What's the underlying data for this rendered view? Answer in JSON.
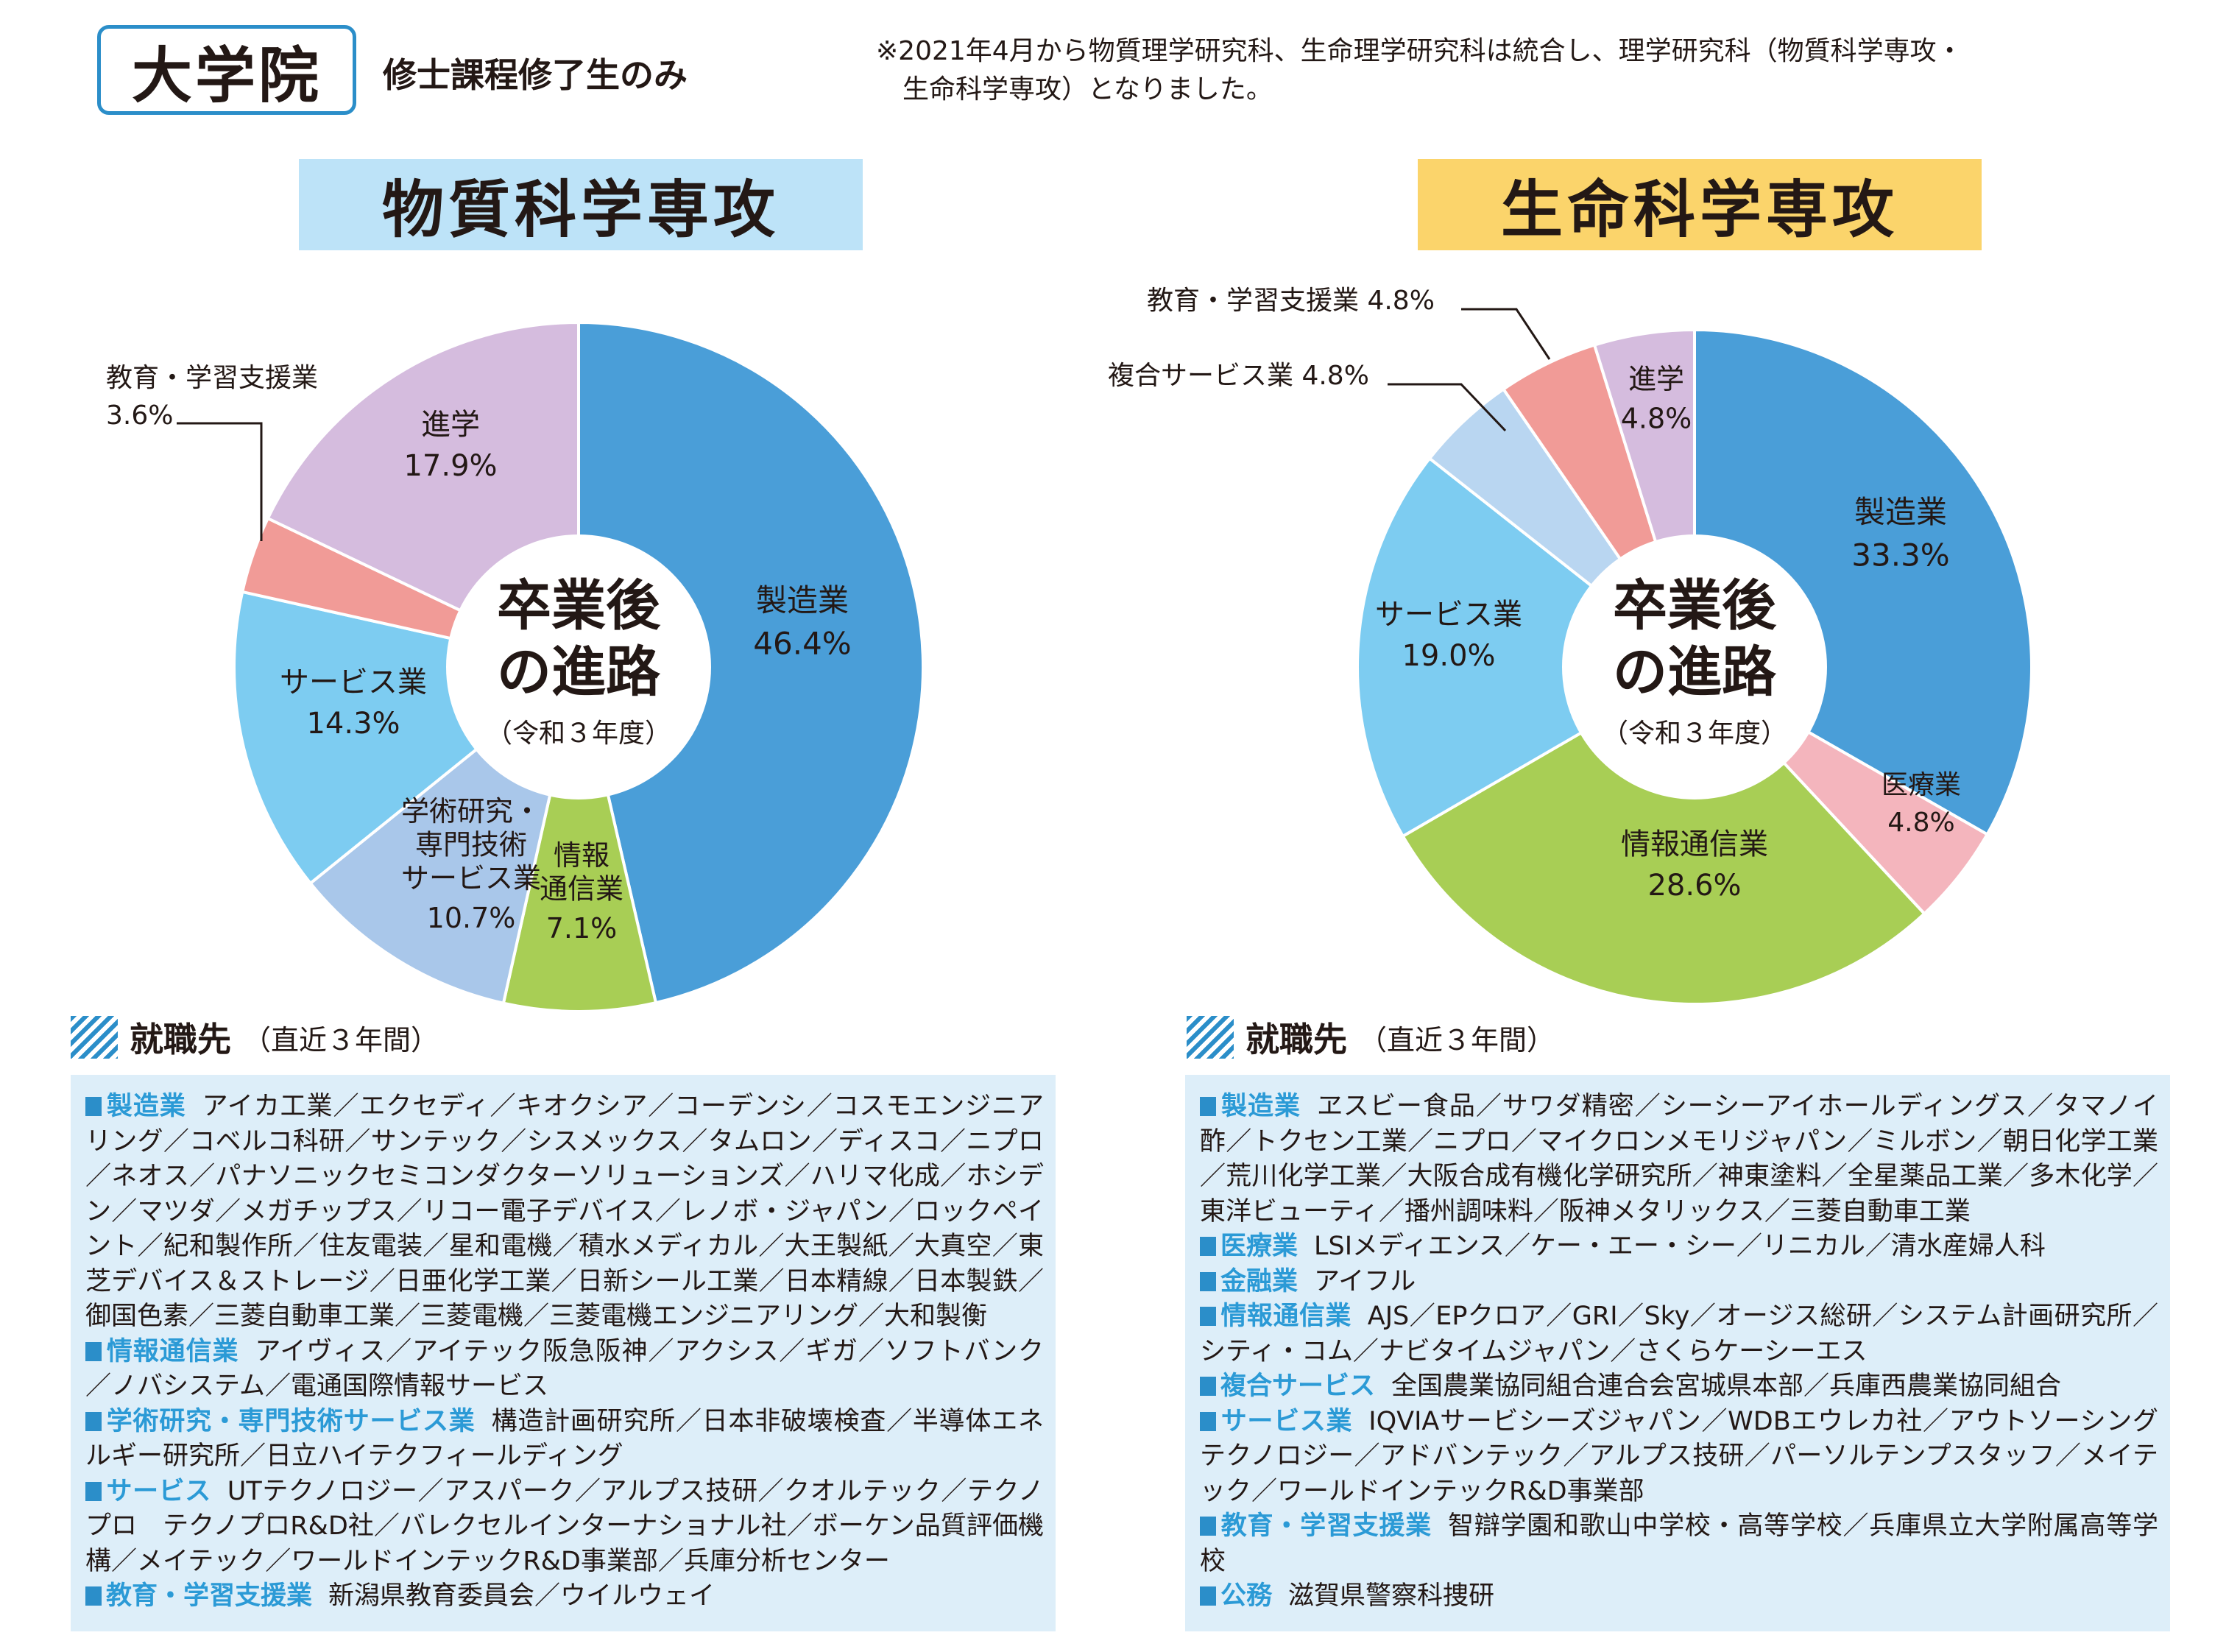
{
  "header": {
    "title": "大学院",
    "subtitle": "修士課程修了生のみ",
    "note": "※2021年4月から物質理学研究科、生命理学研究科は統合し、理学研究科（物質科学専攻・\n　生命科学専攻）となりました。"
  },
  "chart_data": [
    {
      "type": "pie",
      "title": "物質科学専攻",
      "center_label": [
        "卒業後",
        "の進路",
        "（令和３年度）"
      ],
      "slices": [
        {
          "label": "製造業",
          "value": 46.4,
          "color": "#4a9ed8"
        },
        {
          "label": "情報通信業",
          "value": 7.1,
          "color": "#a8ce55"
        },
        {
          "label": "学術研究・専門技術サービス業",
          "value": 10.7,
          "color": "#a9c7ea"
        },
        {
          "label": "サービス業",
          "value": 14.3,
          "color": "#7dccf1"
        },
        {
          "label": "教育・学習支援業",
          "value": 3.6,
          "color": "#f19b97"
        },
        {
          "label": "進学",
          "value": 17.9,
          "color": "#d5bcde"
        }
      ],
      "display_labels": [
        {
          "lines": [
            "製造業"
          ],
          "pct": "46.4%"
        },
        {
          "lines": [
            "情報",
            "通信業"
          ],
          "pct": "7.1%"
        },
        {
          "lines": [
            "学術研究・",
            "専門技術",
            "サービス業"
          ],
          "pct": "10.7%"
        },
        {
          "lines": [
            "サービス業"
          ],
          "pct": "14.3%"
        },
        {
          "lines": [
            "教育・学習支援業"
          ],
          "pct": "3.6%"
        },
        {
          "lines": [
            "進学"
          ],
          "pct": "17.9%"
        }
      ]
    },
    {
      "type": "pie",
      "title": "生命科学専攻",
      "center_label": [
        "卒業後",
        "の進路",
        "（令和３年度）"
      ],
      "slices": [
        {
          "label": "製造業",
          "value": 33.3,
          "color": "#4a9ed8"
        },
        {
          "label": "医療業",
          "value": 4.8,
          "color": "#f4b5bd"
        },
        {
          "label": "情報通信業",
          "value": 28.6,
          "color": "#a8ce55"
        },
        {
          "label": "サービス業",
          "value": 19.0,
          "color": "#7dccf1"
        },
        {
          "label": "複合サービス業",
          "value": 4.8,
          "color": "#b9d6f1"
        },
        {
          "label": "教育・学習支援業",
          "value": 4.8,
          "color": "#f19b97"
        },
        {
          "label": "進学",
          "value": 4.8,
          "color": "#d5bcde"
        }
      ],
      "display_labels": [
        {
          "lines": [
            "製造業"
          ],
          "pct": "33.3%"
        },
        {
          "lines": [
            "医療業"
          ],
          "pct": "4.8%"
        },
        {
          "lines": [
            "情報通信業"
          ],
          "pct": "28.6%"
        },
        {
          "lines": [
            "サービス業"
          ],
          "pct": "19.0%"
        },
        {
          "lines": [
            "複合サービス業"
          ],
          "pct": "4.8%"
        },
        {
          "lines": [
            "教育・学習支援業"
          ],
          "pct": "4.8%"
        },
        {
          "lines": [
            "進学"
          ],
          "pct": "4.8%"
        }
      ]
    }
  ],
  "employers_left": {
    "title": "就職先",
    "subtitle": "（直近３年間）",
    "groups": [
      {
        "category": "製造業",
        "items": "アイカ工業／エクセディ／キオクシア／コーデンシ／コスモエンジニアリング／コベルコ科研／サンテック／シスメックス／タムロン／ディスコ／ニプロ／ネオス／パナソニックセミコンダクターソリューションズ／ハリマ化成／ホシデン／マツダ／メガチップス／リコー電子デバイス／レノボ・ジャパン／ロックペイント／紀和製作所／住友電装／星和電機／積水メディカル／大王製紙／大真空／東芝デバイス＆ストレージ／日亜化学工業／日新シール工業／日本精線／日本製鉄／御国色素／三菱自動車工業／三菱電機／三菱電機エンジニアリング／大和製衡"
      },
      {
        "category": "情報通信業",
        "items": "アイヴィス／アイテック阪急阪神／アクシス／ギガ／ソフトバンク／ノバシステム／電通国際情報サービス"
      },
      {
        "category": "学術研究・専門技術サービス業",
        "items": "構造計画研究所／日本非破壊検査／半導体エネルギー研究所／日立ハイテクフィールディング"
      },
      {
        "category": "サービス",
        "items": "UTテクノロジー／アスパーク／アルプス技研／クオルテック／テクノプロ　テクノプロR&D社／バレクセルインターナショナル社／ボーケン品質評価機構／メイテック／ワールドインテックR&D事業部／兵庫分析センター"
      },
      {
        "category": "教育・学習支援業",
        "items": "新潟県教育委員会／ウイルウェイ"
      }
    ]
  },
  "employers_right": {
    "title": "就職先",
    "subtitle": "（直近３年間）",
    "groups": [
      {
        "category": "製造業",
        "items": "ヱスビー食品／サワダ精密／シーシーアイホールディングス／タマノイ酢／トクセン工業／ニプロ／マイクロンメモリジャパン／ミルボン／朝日化学工業／荒川化学工業／大阪合成有機化学研究所／神東塗料／全星薬品工業／多木化学／東洋ビューティ／播州調味料／阪神メタリックス／三菱自動車工業"
      },
      {
        "category": "医療業",
        "items": "LSIメディエンス／ケー・エー・シー／リニカル／清水産婦人科"
      },
      {
        "category": "金融業",
        "items": "アイフル"
      },
      {
        "category": "情報通信業",
        "items": "AJS／EPクロア／GRI／Sky／オージス総研／システム計画研究所／シティ・コム／ナビタイムジャパン／さくらケーシーエス"
      },
      {
        "category": "複合サービス",
        "items": "全国農業協同組合連合会宮城県本部／兵庫西農業協同組合"
      },
      {
        "category": "サービス業",
        "items": "IQVIAサービシーズジャパン／WDBエウレカ社／アウトソーシングテクノロジー／アドバンテック／アルプス技研／パーソルテンプスタッフ／メイテック／ワールドインテックR&D事業部"
      },
      {
        "category": "教育・学習支援業",
        "items": "智辯学園和歌山中学校・高等学校／兵庫県立大学附属高等学校"
      },
      {
        "category": "公務",
        "items": "滋賀県警察科捜研"
      }
    ]
  }
}
